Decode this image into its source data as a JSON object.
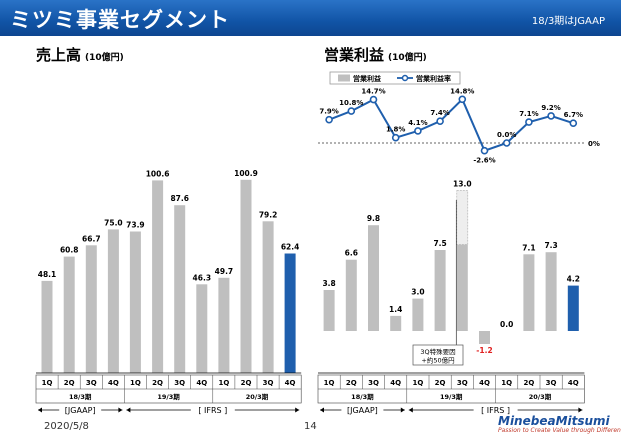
{
  "header": {
    "title": "ミツミ事業セグメント",
    "standard": "18/3期はJGAAP"
  },
  "left_panel": {
    "title": "売上高",
    "unit": "(10億円)"
  },
  "right_panel": {
    "title": "営業利益",
    "unit": "(10億円)"
  },
  "chart_data": [
    {
      "type": "bar",
      "title": "売上高",
      "unit": "(10億円)",
      "categories": [
        "1Q",
        "2Q",
        "3Q",
        "4Q",
        "1Q",
        "2Q",
        "3Q",
        "4Q",
        "1Q",
        "2Q",
        "3Q",
        "4Q"
      ],
      "periods": [
        "18/3期",
        "19/3期",
        "20/3期"
      ],
      "standards": [
        "[JGAAP]",
        "[ IFRS ]"
      ],
      "values": [
        48.1,
        60.8,
        66.7,
        75.0,
        73.9,
        100.6,
        87.6,
        46.3,
        49.7,
        100.9,
        79.2,
        62.4
      ],
      "colors": {
        "bar": "#bfbfbf",
        "highlight": "#1f5fad"
      }
    },
    {
      "type": "bar+line",
      "title": "営業利益",
      "unit": "(10億円)",
      "legend": [
        "営業利益",
        "営業利益率"
      ],
      "categories": [
        "1Q",
        "2Q",
        "3Q",
        "4Q",
        "1Q",
        "2Q",
        "3Q",
        "4Q",
        "1Q",
        "2Q",
        "3Q",
        "4Q"
      ],
      "periods": [
        "18/3期",
        "19/3期",
        "20/3期"
      ],
      "standards": [
        "[JGAAP]",
        "[ IFRS ]"
      ],
      "values": [
        3.8,
        6.6,
        9.8,
        1.4,
        3.0,
        7.5,
        13.0,
        -1.2,
        0.0,
        7.1,
        7.3,
        4.2
      ],
      "value_labels": [
        "3.8",
        "6.6",
        "9.8",
        "1.4",
        "3.0",
        "7.5",
        "13.0",
        "-1.2",
        "0.0",
        "7.1",
        "7.3",
        "4.2"
      ],
      "special_factor_portion": 5.0,
      "annotation": [
        "3Q特殊要因",
        "+約50億円"
      ],
      "margin_rate": [
        7.9,
        10.8,
        14.7,
        1.8,
        4.1,
        7.4,
        14.8,
        -2.6,
        0.0,
        7.1,
        9.2,
        6.7
      ],
      "margin_labels": [
        "7.9%",
        "10.8%",
        "14.7%",
        "1.8%",
        "4.1%",
        "7.4%",
        "14.8%",
        "-2.6%",
        "0.0%",
        "7.1%",
        "9.2%",
        "6.7%"
      ],
      "zero_label": "0%",
      "colors": {
        "bar": "#bfbfbf",
        "highlight": "#1f5fad",
        "line": "#1f5fad",
        "negative_label": "#e02020"
      }
    }
  ],
  "footer": {
    "date": "2020/5/8",
    "page": "14",
    "logo_name": "MinebeaMitsumi",
    "logo_tagline": "Passion to Create Value through Difference"
  }
}
